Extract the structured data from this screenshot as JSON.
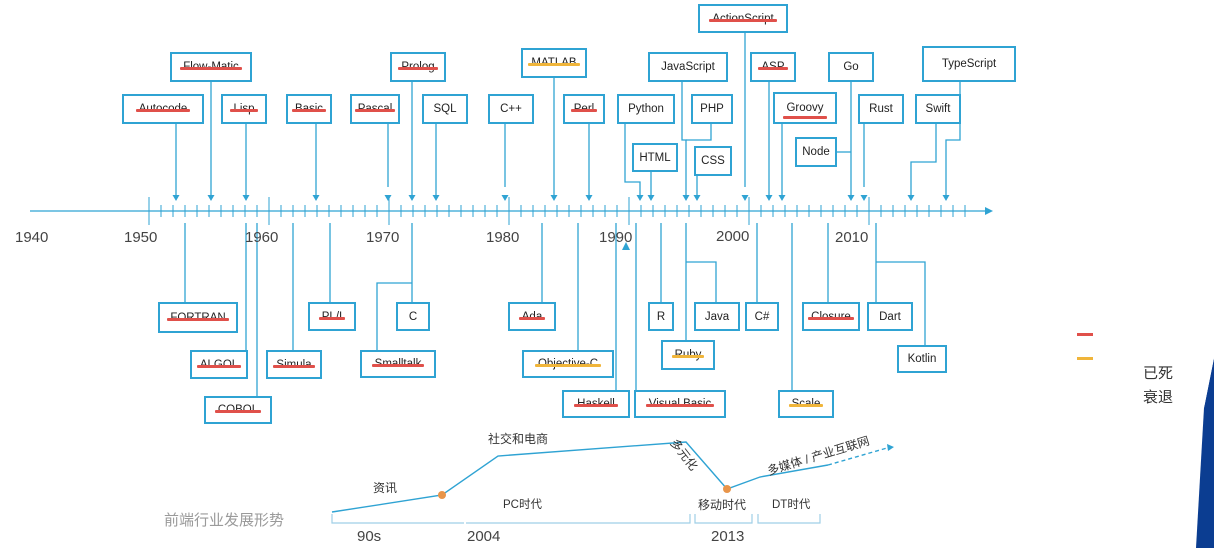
{
  "timeline": {
    "years": [
      "1940",
      "1950",
      "1960",
      "1970",
      "1980",
      "1990",
      "2000",
      "2010"
    ]
  },
  "languages": {
    "flow_matic": {
      "label": "Flow-Matic",
      "status": "dead"
    },
    "autocode": {
      "label": "Autocode",
      "status": "dead"
    },
    "lisp": {
      "label": "Lisp",
      "status": "dead"
    },
    "basic": {
      "label": "Basic",
      "status": "dead"
    },
    "prolog": {
      "label": "Prolog",
      "status": "dead"
    },
    "pascal": {
      "label": "Pascal",
      "status": "dead"
    },
    "sql": {
      "label": "SQL",
      "status": "active"
    },
    "matlab": {
      "label": "MATLAB",
      "status": "declining"
    },
    "cpp": {
      "label": "C++",
      "status": "active"
    },
    "perl": {
      "label": "Perl",
      "status": "dead"
    },
    "python": {
      "label": "Python",
      "status": "active"
    },
    "javascript": {
      "label": "JavaScript",
      "status": "active"
    },
    "php": {
      "label": "PHP",
      "status": "active"
    },
    "html": {
      "label": "HTML",
      "status": "active"
    },
    "css": {
      "label": "CSS",
      "status": "active"
    },
    "actionscript": {
      "label": "ActionScript",
      "status": "dead"
    },
    "asp": {
      "label": "ASP",
      "status": "dead"
    },
    "groovy": {
      "label": "Groovy",
      "status": "dead"
    },
    "go": {
      "label": "Go",
      "status": "active"
    },
    "rust": {
      "label": "Rust",
      "status": "active"
    },
    "node": {
      "label": "Node",
      "status": "active"
    },
    "typescript": {
      "label": "TypeScript",
      "status": "active"
    },
    "swift": {
      "label": "Swift",
      "status": "active"
    },
    "fortran": {
      "label": "FORTRAN",
      "status": "dead"
    },
    "algol": {
      "label": "ALGOL",
      "status": "dead"
    },
    "cobol": {
      "label": "COBOL",
      "status": "dead"
    },
    "simula": {
      "label": "Simula",
      "status": "dead"
    },
    "pli": {
      "label": "PL/I",
      "status": "dead"
    },
    "c": {
      "label": "C",
      "status": "active"
    },
    "smalltalk": {
      "label": "Smalltalk",
      "status": "dead"
    },
    "ada": {
      "label": "Ada",
      "status": "dead"
    },
    "objective_c": {
      "label": "Objective-C",
      "status": "declining"
    },
    "haskell": {
      "label": "Haskell",
      "status": "dead"
    },
    "visual_basic": {
      "label": "Visual Basic",
      "status": "dead"
    },
    "r": {
      "label": "R",
      "status": "active"
    },
    "ruby": {
      "label": "Ruby",
      "status": "declining"
    },
    "java": {
      "label": "Java",
      "status": "active"
    },
    "csharp": {
      "label": "C#",
      "status": "active"
    },
    "scala": {
      "label": "Scale",
      "status": "declining"
    },
    "closure": {
      "label": "Closure",
      "status": "dead"
    },
    "dart": {
      "label": "Dart",
      "status": "active"
    },
    "kotlin": {
      "label": "Kotlin",
      "status": "active"
    }
  },
  "legend": {
    "dead": {
      "label": "已死",
      "color": "#e0504a"
    },
    "declining": {
      "label": "衰退",
      "color": "#f0b53a"
    }
  },
  "trend": {
    "title": "前端行业发展形势",
    "stages": {
      "info": "资讯",
      "social": "社交和电商",
      "diverse": "多元化",
      "multimedia": "多媒体 / 产业互联网"
    },
    "eras": {
      "pc": "PC时代",
      "mobile": "移动时代",
      "dt": "DT时代"
    },
    "years": [
      "90s",
      "2004",
      "2013"
    ]
  },
  "colors": {
    "axis": "#2fa3d3",
    "dead": "#e0504a",
    "declining": "#f0b53a",
    "point": "#e8954a"
  }
}
